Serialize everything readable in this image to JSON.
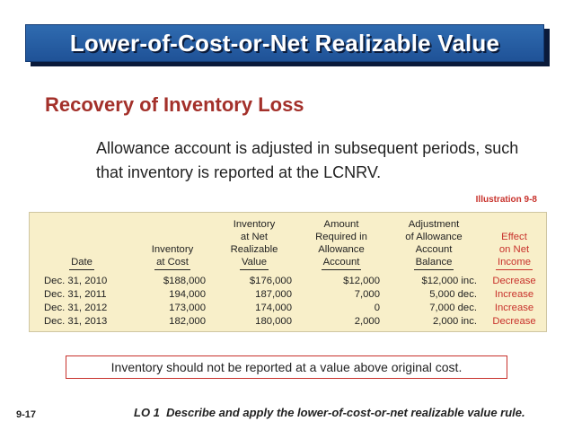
{
  "title": "Lower-of-Cost-or-Net Realizable Value",
  "subtitle": "Recovery of Inventory Loss",
  "paragraph": "Allowance account is adjusted in subsequent periods, such that inventory is reported at the LCNRV.",
  "illustration_label": "Illustration 9-8",
  "table": {
    "headers": [
      [
        "Date"
      ],
      [
        "Inventory",
        "at Cost"
      ],
      [
        "Inventory",
        "at Net",
        "Realizable",
        "Value"
      ],
      [
        "Amount",
        "Required in",
        "Allowance",
        "Account"
      ],
      [
        "Adjustment",
        "of Allowance",
        "Account",
        "Balance"
      ],
      [
        "Effect",
        "on Net",
        "Income"
      ]
    ],
    "rows": [
      [
        "Dec. 31, 2010",
        "$188,000",
        "$176,000",
        "$12,000",
        "$12,000 inc.",
        "Decrease"
      ],
      [
        "Dec. 31, 2011",
        "194,000",
        "187,000",
        "7,000",
        "5,000 dec.",
        "Increase"
      ],
      [
        "Dec. 31, 2012",
        "173,000",
        "174,000",
        "0",
        "7,000 dec.",
        "Increase"
      ],
      [
        "Dec. 31, 2013",
        "182,000",
        "180,000",
        "2,000",
        "2,000 inc.",
        "Decrease"
      ]
    ]
  },
  "note": "Inventory should not be reported at a value above original cost.",
  "page_number": "9-17",
  "learning_objective": "LO 1  Describe and apply the lower-of-cost-or-net realizable value rule.",
  "colors": {
    "title_bar": "#2a63a8",
    "accent_red": "#c8322c",
    "subtitle_red": "#a3302a",
    "table_bg": "#f8efc9"
  }
}
